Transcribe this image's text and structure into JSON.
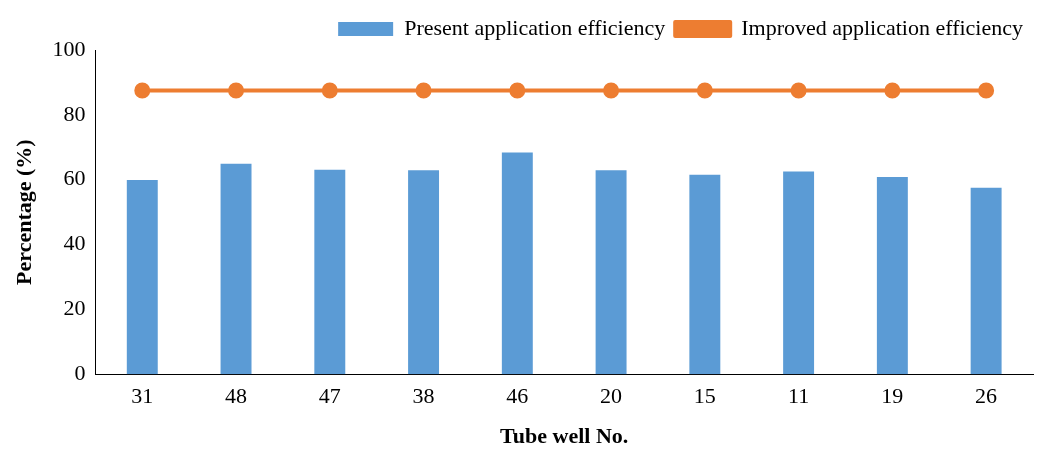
{
  "chart_data": {
    "type": "bar",
    "xlabel": "Tube well No.",
    "ylabel": "Percentage (%)",
    "categories": [
      "31",
      "48",
      "47",
      "38",
      "46",
      "20",
      "15",
      "11",
      "19",
      "26"
    ],
    "series": [
      {
        "name": "Present application efficiency",
        "color": "#5b9bd5",
        "values": [
          59.9,
          64.9,
          63.1,
          62.9,
          68.4,
          62.9,
          61.5,
          62.5,
          60.8,
          57.5
        ]
      },
      {
        "name": "Improved application efficiency",
        "type": "line",
        "color": "#ed7d31",
        "marker": "circle",
        "values": [
          87.5,
          87.5,
          87.5,
          87.5,
          87.5,
          87.5,
          87.5,
          87.5,
          87.5,
          87.5
        ]
      }
    ],
    "ylim": [
      0,
      100
    ],
    "yticks": [
      0,
      20,
      40,
      60,
      80,
      100
    ],
    "grid": false,
    "legend": "top right"
  }
}
